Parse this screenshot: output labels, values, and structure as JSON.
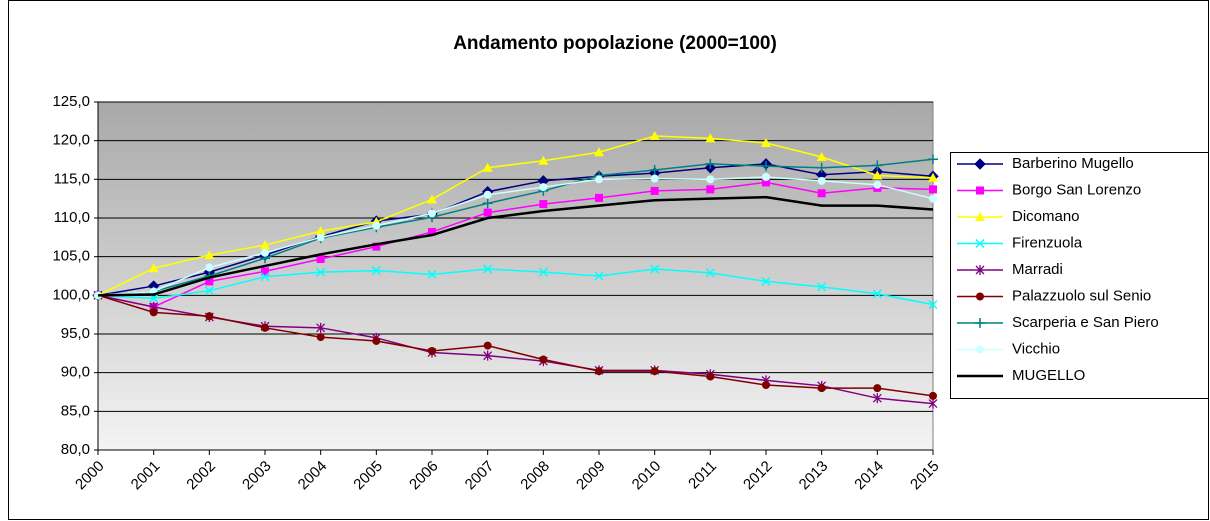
{
  "chart_data": {
    "type": "line",
    "title": "Andamento popolazione (2000=100)",
    "categories": [
      "2000",
      "2001",
      "2002",
      "2003",
      "2004",
      "2005",
      "2006",
      "2007",
      "2008",
      "2009",
      "2010",
      "2011",
      "2012",
      "2013",
      "2014",
      "2015"
    ],
    "ylim": [
      80,
      125
    ],
    "yticks": [
      {
        "value": 80,
        "label": "80,0"
      },
      {
        "value": 85,
        "label": "85,0"
      },
      {
        "value": 90,
        "label": "90,0"
      },
      {
        "value": 95,
        "label": "95,0"
      },
      {
        "value": 100,
        "label": "100,0"
      },
      {
        "value": 105,
        "label": "105,0"
      },
      {
        "value": 110,
        "label": "110,0"
      },
      {
        "value": 115,
        "label": "115,0"
      },
      {
        "value": 120,
        "label": "120,0"
      },
      {
        "value": 125,
        "label": "125,0"
      }
    ],
    "grid": true,
    "legend": "right",
    "series": [
      {
        "name": "Barberino Mugello",
        "color": "#000080",
        "marker": "diamond",
        "values": [
          100,
          101.2,
          103,
          105.2,
          107.6,
          109.6,
          110.5,
          113.4,
          114.8,
          115.4,
          115.8,
          116.5,
          117.0,
          115.6,
          116.0,
          115.4
        ]
      },
      {
        "name": "Borgo San Lorenzo",
        "color": "#ff00ff",
        "marker": "square",
        "values": [
          100,
          98.5,
          101.8,
          103.1,
          104.7,
          106.3,
          108.2,
          110.7,
          111.8,
          112.6,
          113.5,
          113.7,
          114.6,
          113.2,
          113.9,
          113.7
        ]
      },
      {
        "name": "Dicomano",
        "color": "#ffff00",
        "marker": "triangle",
        "values": [
          100,
          103.5,
          105.2,
          106.5,
          108.3,
          109.5,
          112.4,
          116.5,
          117.4,
          118.5,
          120.6,
          120.3,
          119.7,
          117.9,
          115.5,
          115.2
        ]
      },
      {
        "name": "Firenzuola",
        "color": "#00ffff",
        "marker": "x",
        "values": [
          100,
          99.6,
          100.6,
          102.4,
          103.0,
          103.2,
          102.7,
          103.4,
          103.0,
          102.5,
          103.4,
          102.9,
          101.8,
          101.1,
          100.2,
          98.8
        ]
      },
      {
        "name": "Marradi",
        "color": "#800080",
        "marker": "star",
        "values": [
          100,
          98.5,
          97.2,
          96.0,
          95.8,
          94.5,
          92.6,
          92.2,
          91.5,
          90.3,
          90.3,
          89.8,
          89.0,
          88.3,
          86.7,
          86.0
        ]
      },
      {
        "name": "Palazzuolo sul Senio",
        "color": "#800000",
        "marker": "circle",
        "values": [
          100,
          97.8,
          97.3,
          95.8,
          94.6,
          94.1,
          92.8,
          93.5,
          91.7,
          90.2,
          90.2,
          89.5,
          88.4,
          88.0,
          88.0,
          87.0
        ]
      },
      {
        "name": "Scarperia e San Piero",
        "color": "#008080",
        "marker": "plus",
        "values": [
          100,
          100.5,
          102.5,
          104.8,
          107.4,
          108.8,
          110.1,
          111.9,
          113.5,
          115.5,
          116.2,
          117.0,
          116.7,
          116.5,
          116.8,
          117.6
        ]
      },
      {
        "name": "Vicchio",
        "color": "#ccffff",
        "marker": "circle",
        "values": [
          100,
          100.5,
          103.6,
          105.5,
          107.5,
          109.0,
          110.6,
          113.0,
          114.0,
          115.0,
          115.1,
          115.0,
          115.3,
          114.8,
          114.3,
          112.5
        ]
      },
      {
        "name": "MUGELLO",
        "color": "#000000",
        "marker": "none",
        "values": [
          100,
          100.1,
          102.3,
          103.8,
          105.3,
          106.6,
          107.8,
          110.0,
          110.9,
          111.6,
          112.3,
          112.5,
          112.7,
          111.6,
          111.6,
          111.1
        ]
      }
    ]
  }
}
